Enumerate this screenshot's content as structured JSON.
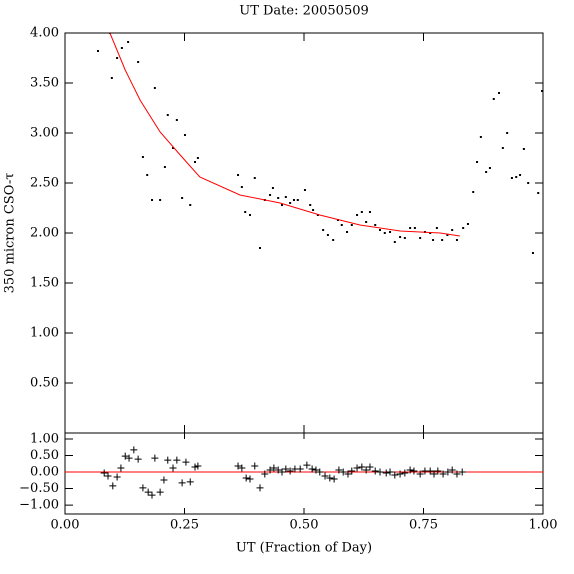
{
  "chart_data": [
    {
      "type": "scatter",
      "title": "UT Date: 20050509",
      "y_label": "350 micron CSO-τ",
      "marker": "dot",
      "color": "#000000",
      "xlim": [
        0,
        1
      ],
      "xticks": [
        0,
        0.25,
        0.5,
        0.75,
        1
      ],
      "ylim": [
        0,
        4
      ],
      "yticks": [
        {
          "value": 0.5,
          "label": "0.50"
        },
        {
          "value": 1,
          "label": "1.00"
        },
        {
          "value": 1.5,
          "label": "1.50"
        },
        {
          "value": 2,
          "label": "2.00"
        },
        {
          "value": 2.5,
          "label": "2.50"
        },
        {
          "value": 3,
          "label": "3.00"
        },
        {
          "value": 3.5,
          "label": "3.50"
        },
        {
          "value": 4,
          "label": "4.00"
        }
      ],
      "x": [
        0.069,
        0.094,
        0.098,
        0.109,
        0.119,
        0.132,
        0.153,
        0.163,
        0.172,
        0.182,
        0.188,
        0.199,
        0.209,
        0.215,
        0.226,
        0.234,
        0.245,
        0.251,
        0.262,
        0.272,
        0.278,
        0.362,
        0.37,
        0.377,
        0.387,
        0.397,
        0.408,
        0.418,
        0.429,
        0.435,
        0.446,
        0.454,
        0.462,
        0.471,
        0.479,
        0.487,
        0.502,
        0.513,
        0.519,
        0.529,
        0.54,
        0.55,
        0.561,
        0.571,
        0.579,
        0.59,
        0.6,
        0.611,
        0.621,
        0.63,
        0.638,
        0.649,
        0.659,
        0.669,
        0.68,
        0.69,
        0.701,
        0.711,
        0.722,
        0.732,
        0.743,
        0.753,
        0.764,
        0.77,
        0.778,
        0.789,
        0.8,
        0.81,
        0.82,
        0.833,
        0.843,
        0.854,
        0.862,
        0.87,
        0.881,
        0.889,
        0.897,
        0.908,
        0.916,
        0.925,
        0.935,
        0.944,
        0.952,
        0.96,
        0.969,
        0.979,
        0.99,
        0.998
      ],
      "values": [
        3.82,
        4.0,
        3.55,
        3.75,
        3.85,
        3.91,
        3.71,
        2.76,
        2.58,
        2.33,
        3.45,
        2.33,
        2.66,
        3.18,
        2.85,
        3.13,
        2.35,
        2.98,
        2.28,
        2.71,
        2.75,
        2.58,
        2.46,
        2.21,
        2.18,
        2.55,
        1.85,
        2.33,
        2.38,
        2.45,
        2.35,
        2.28,
        2.36,
        2.3,
        2.33,
        2.33,
        2.43,
        2.28,
        2.23,
        2.18,
        2.03,
        1.98,
        1.93,
        2.13,
        2.08,
        2.01,
        2.08,
        2.18,
        2.21,
        2.11,
        2.21,
        2.08,
        2.03,
        2.0,
        2.01,
        1.91,
        1.96,
        1.95,
        2.05,
        2.05,
        1.95,
        2.01,
        2.0,
        1.93,
        2.05,
        1.93,
        1.98,
        2.03,
        1.93,
        2.05,
        2.09,
        2.41,
        2.71,
        2.96,
        2.61,
        2.65,
        3.34,
        3.4,
        2.85,
        3.0,
        2.55,
        2.56,
        2.58,
        2.84,
        2.5,
        1.8,
        2.4,
        3.42
      ],
      "fit": {
        "color": "#ff0000",
        "x": [
          0.094,
          0.126,
          0.157,
          0.199,
          0.241,
          0.282,
          0.366,
          0.45,
          0.533,
          0.617,
          0.701,
          0.785,
          0.826
        ],
        "values": [
          4.0,
          3.63,
          3.33,
          3.01,
          2.78,
          2.56,
          2.38,
          2.3,
          2.18,
          2.08,
          2.02,
          2.0,
          1.97
        ]
      }
    },
    {
      "type": "scatter",
      "x_label": "UT (Fraction of Day)",
      "marker": "plus",
      "color": "#000000",
      "hline": 0,
      "hline_color": "#ff0000",
      "xlim": [
        0,
        1
      ],
      "xticks": [
        {
          "value": 0,
          "label": "0.00"
        },
        {
          "value": 0.25,
          "label": "0.25"
        },
        {
          "value": 0.5,
          "label": "0.50"
        },
        {
          "value": 0.75,
          "label": "0.75"
        },
        {
          "value": 1,
          "label": "1.00"
        }
      ],
      "ylim": [
        -1.27,
        1.18
      ],
      "yticks": [
        {
          "value": -1,
          "label": "−1.00"
        },
        {
          "value": -0.5,
          "label": "−0.50"
        },
        {
          "value": 0,
          "label": "0.00"
        },
        {
          "value": 0.5,
          "label": "0.50"
        },
        {
          "value": 1,
          "label": "1.00"
        }
      ],
      "x": [
        0.082,
        0.09,
        0.1,
        0.109,
        0.117,
        0.126,
        0.134,
        0.144,
        0.153,
        0.163,
        0.174,
        0.182,
        0.188,
        0.199,
        0.207,
        0.215,
        0.226,
        0.234,
        0.245,
        0.253,
        0.262,
        0.272,
        0.278,
        0.362,
        0.37,
        0.379,
        0.387,
        0.397,
        0.408,
        0.418,
        0.429,
        0.437,
        0.446,
        0.454,
        0.462,
        0.471,
        0.481,
        0.492,
        0.506,
        0.517,
        0.525,
        0.533,
        0.544,
        0.554,
        0.563,
        0.573,
        0.582,
        0.592,
        0.6,
        0.611,
        0.621,
        0.63,
        0.638,
        0.649,
        0.659,
        0.672,
        0.68,
        0.69,
        0.701,
        0.711,
        0.722,
        0.73,
        0.743,
        0.753,
        0.764,
        0.772,
        0.78,
        0.791,
        0.801,
        0.81,
        0.82,
        0.831
      ],
      "values": [
        -0.03,
        -0.12,
        -0.42,
        -0.15,
        0.12,
        0.48,
        0.42,
        0.67,
        0.39,
        -0.48,
        -0.61,
        -0.7,
        0.42,
        -0.61,
        -0.24,
        0.36,
        0.12,
        0.36,
        -0.33,
        0.3,
        -0.3,
        0.15,
        0.18,
        0.18,
        0.12,
        -0.18,
        -0.21,
        0.18,
        -0.48,
        -0.06,
        0.06,
        0.12,
        0.06,
        0,
        0.09,
        0.03,
        0.09,
        0.09,
        0.21,
        0.09,
        0.06,
        0,
        -0.12,
        -0.18,
        -0.21,
        0.06,
        0,
        -0.06,
        0.03,
        0.12,
        0.15,
        0.06,
        0.15,
        0.03,
        0,
        -0.03,
        0,
        -0.09,
        -0.06,
        -0.03,
        0.06,
        0.03,
        -0.06,
        0.03,
        0.03,
        -0.06,
        0.03,
        -0.06,
        0,
        0.06,
        -0.06,
        0
      ]
    }
  ]
}
